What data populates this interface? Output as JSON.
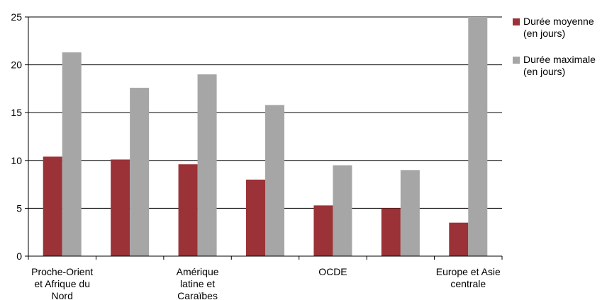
{
  "chart_data": {
    "type": "bar",
    "categories": [
      [
        "Proche-Orient",
        "et Afrique du",
        "Nord"
      ],
      [],
      [
        "Amérique",
        "latine et",
        "Caraïbes"
      ],
      [],
      [
        "OCDE"
      ],
      [],
      [
        "Europe et Asie",
        "centrale"
      ]
    ],
    "series": [
      {
        "name_lines": [
          "Durée moyenne",
          "(en jours)"
        ],
        "color": "#9b3237",
        "values": [
          10.4,
          10.1,
          9.6,
          8.0,
          5.3,
          5.0,
          3.5
        ]
      },
      {
        "name_lines": [
          "Durée maximale",
          "(en jours)"
        ],
        "color": "#a6a6a6",
        "values": [
          21.3,
          17.6,
          19.0,
          15.8,
          9.5,
          9.0,
          25.0
        ]
      }
    ],
    "y_ticks": [
      "0",
      "5",
      "10",
      "15",
      "20",
      "25"
    ],
    "ylim": [
      0,
      25
    ],
    "grid": true,
    "legend_position": "right"
  }
}
